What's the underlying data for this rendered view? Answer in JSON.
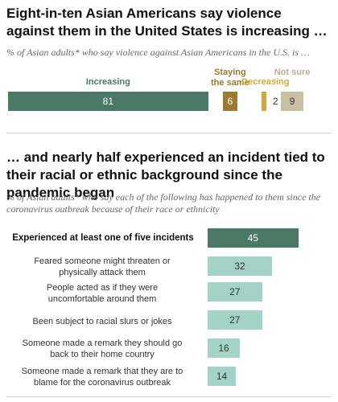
{
  "section1": {
    "title": "Eight-in-ten Asian Americans say violence against them in the United States is increasing …",
    "subtitle": "% of Asian adults* who say violence against Asian Americans in the U.S. is …"
  },
  "section2": {
    "title": "… and nearly half experienced an incident tied to their racial or ethnic background since the pandemic began",
    "subtitle": "% of Asian adults* who say each of the following has happened to them since the coronavirus outbreak because of their race or ethnicity"
  },
  "chart_data": [
    {
      "type": "bar",
      "orientation": "stacked-horizontal",
      "categories": [
        "Increasing",
        "Staying the same",
        "Decreasing",
        "Not sure"
      ],
      "values": [
        81,
        6,
        2,
        9
      ],
      "colors": [
        "#4a7a66",
        "#9a7b30",
        "#d4a83a",
        "#c9bfa3"
      ]
    },
    {
      "type": "bar",
      "orientation": "horizontal",
      "categories": [
        "Experienced at least one of five incidents",
        "Feared someone might threaten or physically attack them",
        "People acted as if they were uncomfortable around them",
        "Been subject to racial slurs or jokes",
        "Someone made a remark they should go back to their home country",
        "Someone made a remark that they are to blame for the coronavirus outbreak"
      ],
      "values": [
        45,
        32,
        27,
        27,
        16,
        14
      ],
      "colors": [
        "#4a7a66",
        "#a3d2c6"
      ]
    }
  ]
}
